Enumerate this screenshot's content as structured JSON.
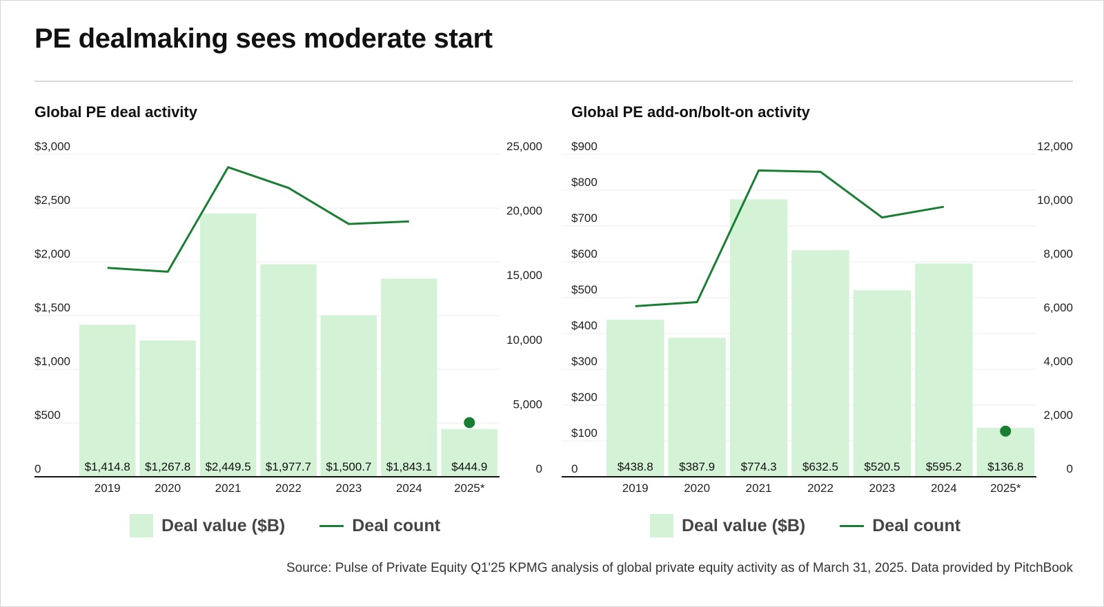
{
  "title": "PE dealmaking sees moderate start",
  "source": "Source: Pulse of Private Equity Q1'25 KPMG analysis of global private equity activity as of March 31, 2025. Data provided by PitchBook",
  "legend": {
    "bar_label": "Deal value ($B)",
    "line_label": "Deal count"
  },
  "colors": {
    "bar": "#d4f2d6",
    "line": "#1a7d34",
    "axis": "#111111",
    "grid": "#ececec"
  },
  "chart_data": [
    {
      "type": "bar",
      "title": "Global PE deal activity",
      "categories": [
        "2019",
        "2020",
        "2021",
        "2022",
        "2023",
        "2024",
        "2025*"
      ],
      "series": [
        {
          "name": "Deal value ($B)",
          "type": "bar",
          "axis": "left",
          "values": [
            1414.8,
            1267.8,
            2449.5,
            1977.7,
            1500.7,
            1843.1,
            444.9
          ],
          "labels": [
            "$1,414.8",
            "$1,267.8",
            "$2,449.5",
            "$1,977.7",
            "$1,500.7",
            "$1,843.1",
            "$444.9"
          ]
        },
        {
          "name": "Deal count",
          "type": "line",
          "axis": "right",
          "values": [
            16200,
            15900,
            24000,
            22400,
            19600,
            19800,
            4200
          ]
        }
      ],
      "left_axis": {
        "ylim": [
          0,
          3000
        ],
        "ticks": [
          0,
          500,
          1000,
          1500,
          2000,
          2500,
          3000
        ],
        "tick_labels": [
          "0",
          "$500",
          "$1,000",
          "$1,500",
          "$2,000",
          "$2,500",
          "$3,000"
        ]
      },
      "right_axis": {
        "ylim": [
          0,
          25000
        ],
        "ticks": [
          0,
          5000,
          10000,
          15000,
          20000,
          25000
        ],
        "tick_labels": [
          "0",
          "5,000",
          "10,000",
          "15,000",
          "20,000",
          "25,000"
        ]
      },
      "line_marker_for_last": true,
      "grid": true
    },
    {
      "type": "bar",
      "title": "Global PE add-on/bolt-on activity",
      "categories": [
        "2019",
        "2020",
        "2021",
        "2022",
        "2023",
        "2024",
        "2025*"
      ],
      "series": [
        {
          "name": "Deal value ($B)",
          "type": "bar",
          "axis": "left",
          "values": [
            438.8,
            387.9,
            774.3,
            632.5,
            520.5,
            595.2,
            136.8
          ],
          "labels": [
            "$438.8",
            "$387.9",
            "$774.3",
            "$632.5",
            "$520.5",
            "$595.2",
            "$136.8"
          ]
        },
        {
          "name": "Deal count",
          "type": "line",
          "axis": "right",
          "values": [
            6350,
            6500,
            11400,
            11350,
            9650,
            10050,
            1700
          ]
        }
      ],
      "left_axis": {
        "ylim": [
          0,
          900
        ],
        "ticks": [
          0,
          100,
          200,
          300,
          400,
          500,
          600,
          700,
          800,
          900
        ],
        "tick_labels": [
          "0",
          "$100",
          "$200",
          "$300",
          "$400",
          "$500",
          "$600",
          "$700",
          "$800",
          "$900"
        ]
      },
      "right_axis": {
        "ylim": [
          0,
          12000
        ],
        "ticks": [
          0,
          2000,
          4000,
          6000,
          8000,
          10000,
          12000
        ],
        "tick_labels": [
          "0",
          "2,000",
          "4,000",
          "6,000",
          "8,000",
          "10,000",
          "12,000"
        ]
      },
      "line_marker_for_last": true,
      "grid": true
    }
  ]
}
